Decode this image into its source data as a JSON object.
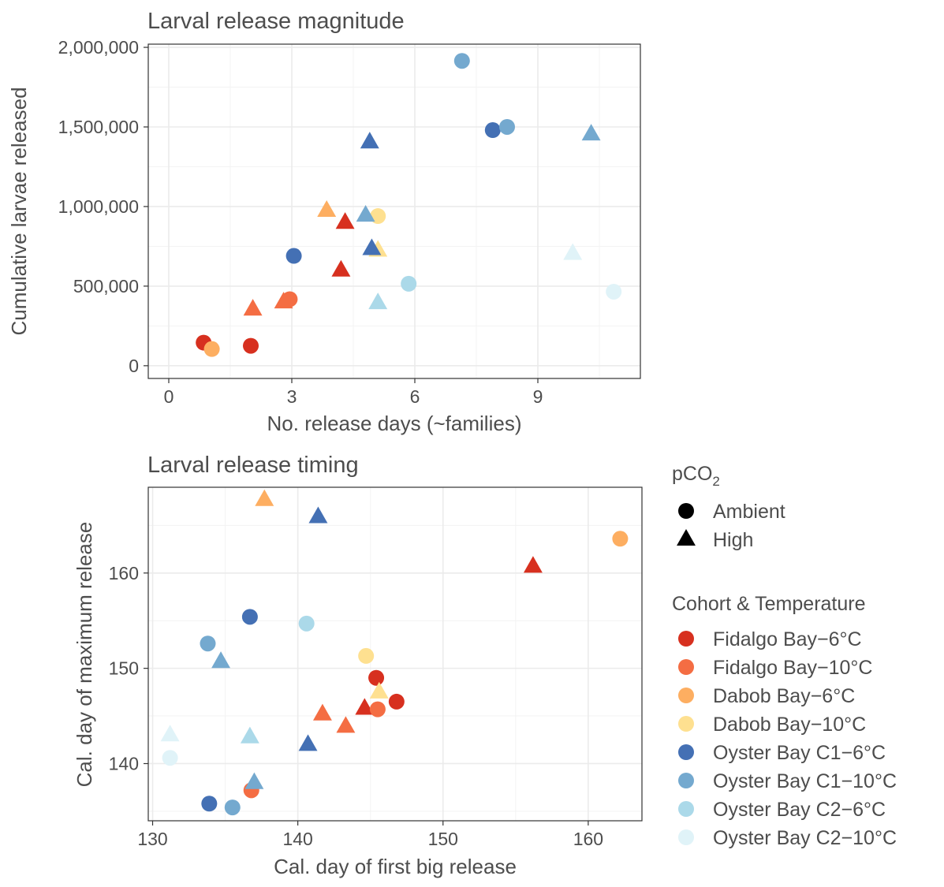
{
  "legend": {
    "shape_title_main": "pCO",
    "shape_title_sub": "2",
    "shapes": [
      {
        "label": "Ambient",
        "shape": "circle"
      },
      {
        "label": "High",
        "shape": "triangle"
      }
    ],
    "color_title": "Cohort & Temperature",
    "groups": [
      {
        "label": "Fidalgo Bay−6°C",
        "color": "#d7301f"
      },
      {
        "label": "Fidalgo Bay−10°C",
        "color": "#f46d43"
      },
      {
        "label": "Dabob Bay−6°C",
        "color": "#fdae61"
      },
      {
        "label": "Dabob Bay−10°C",
        "color": "#fee090"
      },
      {
        "label": "Oyster Bay C1−6°C",
        "color": "#4470b4"
      },
      {
        "label": "Oyster Bay C1−10°C",
        "color": "#74a9cf"
      },
      {
        "label": "Oyster Bay C2−6°C",
        "color": "#abd9e9"
      },
      {
        "label": "Oyster Bay C2−10°C",
        "color": "#e0f3f8"
      }
    ]
  },
  "chart_data": [
    {
      "type": "scatter",
      "title": "Larval release magnitude",
      "xlabel": "No. release days (~families)",
      "ylabel": "Cumulative larvae released",
      "xlim": [
        -0.5,
        11.5
      ],
      "ylim": [
        -80000,
        2020000
      ],
      "xticks": [
        0,
        3,
        6,
        9
      ],
      "xtick_labels": [
        "0",
        "3",
        "6",
        "9"
      ],
      "yticks": [
        0,
        500000,
        1000000,
        1500000,
        2000000
      ],
      "ytick_labels": [
        "0",
        "500,000",
        "1,000,000",
        "1,500,000",
        "2,000,000"
      ],
      "grid": true,
      "points": [
        {
          "x": 0.85,
          "y": 145000,
          "group": 0,
          "shape": "circle"
        },
        {
          "x": 2.0,
          "y": 125000,
          "group": 0,
          "shape": "circle"
        },
        {
          "x": 4.2,
          "y": 600000,
          "group": 0,
          "shape": "triangle"
        },
        {
          "x": 4.3,
          "y": 900000,
          "group": 0,
          "shape": "triangle"
        },
        {
          "x": 2.95,
          "y": 418000,
          "group": 1,
          "shape": "circle"
        },
        {
          "x": 2.05,
          "y": 355000,
          "group": 1,
          "shape": "triangle"
        },
        {
          "x": 2.8,
          "y": 400000,
          "group": 1,
          "shape": "triangle"
        },
        {
          "x": 1.05,
          "y": 105000,
          "group": 2,
          "shape": "circle"
        },
        {
          "x": 3.85,
          "y": 975000,
          "group": 2,
          "shape": "triangle"
        },
        {
          "x": 5.1,
          "y": 940000,
          "group": 3,
          "shape": "circle"
        },
        {
          "x": 5.1,
          "y": 725000,
          "group": 3,
          "shape": "triangle"
        },
        {
          "x": 3.05,
          "y": 690000,
          "group": 4,
          "shape": "circle"
        },
        {
          "x": 7.9,
          "y": 1480000,
          "group": 4,
          "shape": "circle"
        },
        {
          "x": 4.9,
          "y": 1405000,
          "group": 4,
          "shape": "triangle"
        },
        {
          "x": 4.95,
          "y": 735000,
          "group": 4,
          "shape": "triangle"
        },
        {
          "x": 7.15,
          "y": 1915000,
          "group": 5,
          "shape": "circle"
        },
        {
          "x": 8.25,
          "y": 1500000,
          "group": 5,
          "shape": "circle"
        },
        {
          "x": 4.8,
          "y": 945000,
          "group": 5,
          "shape": "triangle"
        },
        {
          "x": 10.3,
          "y": 1455000,
          "group": 5,
          "shape": "triangle"
        },
        {
          "x": 5.85,
          "y": 515000,
          "group": 6,
          "shape": "circle"
        },
        {
          "x": 5.1,
          "y": 395000,
          "group": 6,
          "shape": "triangle"
        },
        {
          "x": 10.85,
          "y": 465000,
          "group": 7,
          "shape": "circle"
        },
        {
          "x": 9.85,
          "y": 705000,
          "group": 7,
          "shape": "triangle"
        }
      ]
    },
    {
      "type": "scatter",
      "title": "Larval release timing",
      "xlabel": "Cal. day of first big release",
      "ylabel": "Cal. day of maximum release",
      "xlim": [
        129.7,
        163.7
      ],
      "ylim": [
        134,
        169
      ],
      "xticks": [
        130,
        140,
        150,
        160
      ],
      "xtick_labels": [
        "130",
        "140",
        "150",
        "160"
      ],
      "yticks": [
        140,
        150,
        160
      ],
      "ytick_labels": [
        "140",
        "150",
        "160"
      ],
      "grid": true,
      "points": [
        {
          "x": 145.4,
          "y": 149.0,
          "group": 0,
          "shape": "circle"
        },
        {
          "x": 146.8,
          "y": 146.5,
          "group": 0,
          "shape": "circle"
        },
        {
          "x": 144.6,
          "y": 145.8,
          "group": 0,
          "shape": "triangle"
        },
        {
          "x": 156.2,
          "y": 160.7,
          "group": 0,
          "shape": "triangle"
        },
        {
          "x": 136.8,
          "y": 137.2,
          "group": 1,
          "shape": "circle"
        },
        {
          "x": 145.5,
          "y": 145.7,
          "group": 1,
          "shape": "circle"
        },
        {
          "x": 141.7,
          "y": 145.2,
          "group": 1,
          "shape": "triangle"
        },
        {
          "x": 143.3,
          "y": 143.9,
          "group": 1,
          "shape": "triangle"
        },
        {
          "x": 162.2,
          "y": 163.6,
          "group": 2,
          "shape": "circle"
        },
        {
          "x": 137.7,
          "y": 167.7,
          "group": 2,
          "shape": "triangle"
        },
        {
          "x": 144.7,
          "y": 151.3,
          "group": 3,
          "shape": "circle"
        },
        {
          "x": 145.6,
          "y": 147.5,
          "group": 3,
          "shape": "triangle"
        },
        {
          "x": 136.7,
          "y": 155.4,
          "group": 4,
          "shape": "circle"
        },
        {
          "x": 133.9,
          "y": 135.8,
          "group": 4,
          "shape": "circle"
        },
        {
          "x": 141.4,
          "y": 165.9,
          "group": 4,
          "shape": "triangle"
        },
        {
          "x": 140.7,
          "y": 142.0,
          "group": 4,
          "shape": "triangle"
        },
        {
          "x": 133.8,
          "y": 152.6,
          "group": 5,
          "shape": "circle"
        },
        {
          "x": 135.5,
          "y": 135.4,
          "group": 5,
          "shape": "circle"
        },
        {
          "x": 134.7,
          "y": 150.7,
          "group": 5,
          "shape": "triangle"
        },
        {
          "x": 137.0,
          "y": 138.0,
          "group": 5,
          "shape": "triangle"
        },
        {
          "x": 140.6,
          "y": 154.7,
          "group": 6,
          "shape": "circle"
        },
        {
          "x": 136.7,
          "y": 142.8,
          "group": 6,
          "shape": "triangle"
        },
        {
          "x": 131.2,
          "y": 140.6,
          "group": 7,
          "shape": "circle"
        },
        {
          "x": 131.2,
          "y": 143.0,
          "group": 7,
          "shape": "triangle"
        }
      ]
    }
  ]
}
